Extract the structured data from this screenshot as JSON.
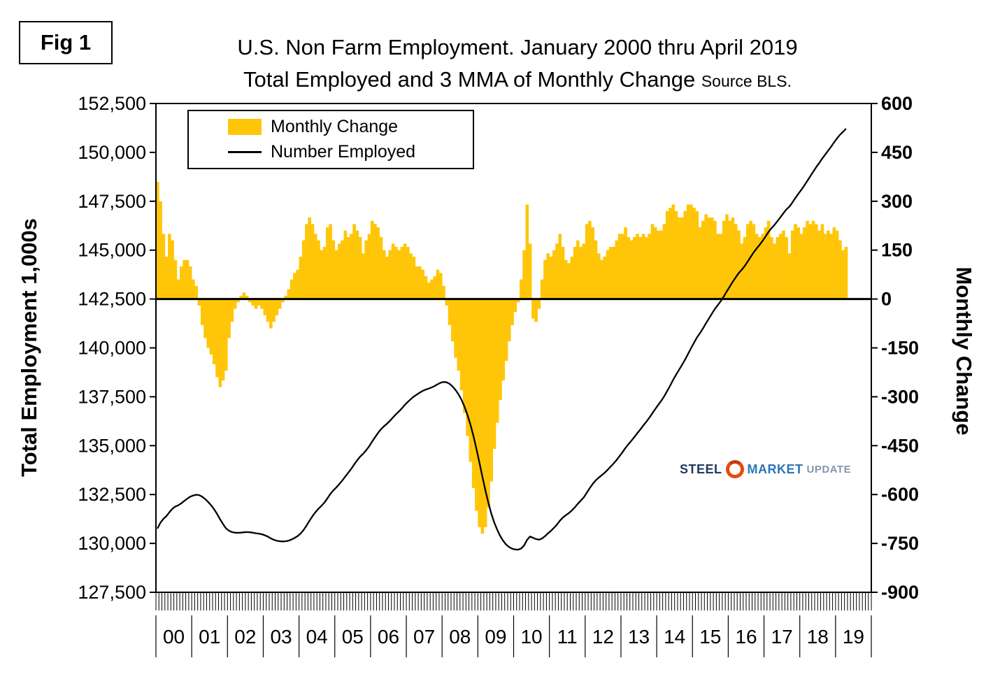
{
  "header": {
    "fig_label": "Fig 1"
  },
  "logo": {
    "steel": "STEEL",
    "market": "MARKET",
    "update": "UPDATE"
  },
  "chart_data": {
    "type": "combo-bar-line",
    "title": "U.S. Non Farm Employment. January 2000 thru April 2019",
    "subtitle": "Total Employed and 3 MMA of Monthly Change",
    "source": "Source BLS.",
    "legend_position": "top-left",
    "grid": "none",
    "left_axis": {
      "label": "Total Employment 1,000s",
      "min": 127500,
      "max": 152500,
      "step": 2500
    },
    "right_axis": {
      "label": "Monthly Change",
      "min": -900,
      "max": 600,
      "step": 150
    },
    "x_axis": {
      "year_labels": [
        "00",
        "01",
        "02",
        "03",
        "04",
        "05",
        "06",
        "07",
        "08",
        "09",
        "10",
        "11",
        "12",
        "13",
        "14",
        "15",
        "16",
        "17",
        "18",
        "19"
      ],
      "months_total": 240,
      "months_with_data": 232,
      "first_month": "Jan 2000",
      "last_month": "Apr 2019"
    },
    "series": [
      {
        "name": "Monthly Change",
        "type": "bar",
        "axis": "right",
        "color": "#FFC609",
        "values": [
          360,
          300,
          200,
          130,
          200,
          180,
          120,
          60,
          100,
          120,
          120,
          100,
          60,
          40,
          -20,
          -80,
          -120,
          -150,
          -170,
          -200,
          -240,
          -270,
          -250,
          -220,
          -120,
          -70,
          -30,
          -10,
          10,
          20,
          10,
          -10,
          -20,
          -30,
          -20,
          -30,
          -50,
          -70,
          -90,
          -70,
          -50,
          -30,
          -10,
          10,
          30,
          60,
          80,
          90,
          130,
          180,
          230,
          250,
          230,
          200,
          180,
          150,
          160,
          220,
          230,
          180,
          150,
          170,
          180,
          210,
          190,
          200,
          230,
          210,
          190,
          140,
          180,
          200,
          240,
          230,
          220,
          190,
          150,
          130,
          150,
          170,
          160,
          150,
          160,
          170,
          160,
          140,
          130,
          100,
          100,
          90,
          70,
          50,
          60,
          70,
          90,
          80,
          40,
          -20,
          -80,
          -130,
          -180,
          -220,
          -280,
          -350,
          -420,
          -500,
          -580,
          -650,
          -700,
          -720,
          -700,
          -640,
          -560,
          -460,
          -380,
          -310,
          -250,
          -190,
          -130,
          -80,
          -40,
          -10,
          60,
          150,
          290,
          170,
          -60,
          -70,
          -30,
          60,
          120,
          140,
          130,
          150,
          170,
          200,
          160,
          120,
          110,
          130,
          160,
          180,
          160,
          170,
          230,
          240,
          220,
          180,
          140,
          120,
          130,
          150,
          160,
          160,
          180,
          200,
          200,
          220,
          190,
          180,
          190,
          200,
          190,
          200,
          190,
          200,
          230,
          220,
          210,
          210,
          230,
          270,
          280,
          290,
          270,
          250,
          250,
          270,
          290,
          290,
          280,
          270,
          220,
          240,
          260,
          250,
          250,
          240,
          200,
          200,
          240,
          260,
          240,
          250,
          230,
          210,
          170,
          190,
          230,
          240,
          230,
          200,
          190,
          200,
          220,
          240,
          190,
          170,
          190,
          200,
          210,
          190,
          140,
          210,
          230,
          220,
          200,
          220,
          240,
          230,
          240,
          230,
          210,
          230,
          200,
          210,
          200,
          220,
          210,
          180,
          150,
          160
        ]
      },
      {
        "name": "Number Employed",
        "type": "line",
        "axis": "left",
        "color": "#000000",
        "values": [
          130760,
          131060,
          131260,
          131390,
          131590,
          131770,
          131890,
          131950,
          132050,
          132170,
          132290,
          132390,
          132450,
          132490,
          132470,
          132390,
          132270,
          132120,
          131950,
          131750,
          131510,
          131240,
          130990,
          130770,
          130650,
          130580,
          130550,
          130540,
          130550,
          130570,
          130580,
          130570,
          130550,
          130520,
          130500,
          130470,
          130420,
          130350,
          130260,
          130190,
          130140,
          130110,
          130100,
          130110,
          130140,
          130200,
          130280,
          130370,
          130500,
          130680,
          130910,
          131160,
          131390,
          131590,
          131770,
          131920,
          132080,
          132300,
          132530,
          132710,
          132860,
          133030,
          133210,
          133420,
          133610,
          133810,
          134040,
          134250,
          134440,
          134580,
          134760,
          134960,
          135200,
          135430,
          135650,
          135840,
          135990,
          136120,
          136270,
          136440,
          136600,
          136750,
          136910,
          137080,
          137240,
          137380,
          137510,
          137610,
          137710,
          137800,
          137870,
          137920,
          137980,
          138050,
          138140,
          138220,
          138260,
          138240,
          138160,
          138030,
          137850,
          137630,
          137350,
          137000,
          136580,
          136080,
          135500,
          134850,
          134150,
          133430,
          132730,
          132090,
          131530,
          131070,
          130690,
          130380,
          130130,
          129940,
          129810,
          129730,
          129690,
          129680,
          129740,
          129890,
          130180,
          130350,
          130290,
          130220,
          130190,
          130250,
          130370,
          130510,
          130640,
          130790,
          130960,
          131160,
          131320,
          131440,
          131550,
          131680,
          131840,
          132020,
          132180,
          132350,
          132580,
          132820,
          133040,
          133220,
          133360,
          133480,
          133610,
          133760,
          133920,
          134080,
          134260,
          134460,
          134660,
          134880,
          135070,
          135250,
          135440,
          135640,
          135830,
          136030,
          136220,
          136420,
          136650,
          136870,
          137080,
          137290,
          137520,
          137790,
          138070,
          138360,
          138630,
          138880,
          139130,
          139400,
          139690,
          139980,
          140260,
          140530,
          140750,
          140990,
          141250,
          141500,
          141750,
          141990,
          142190,
          142390,
          142630,
          142890,
          143130,
          143380,
          143610,
          143820,
          143990,
          144180,
          144410,
          144650,
          144880,
          145080,
          145270,
          145470,
          145690,
          145930,
          146120,
          146290,
          146480,
          146680,
          146890,
          147080,
          147220,
          147430,
          147660,
          147880,
          148080,
          148300,
          148540,
          148770,
          149010,
          149240,
          149450,
          149680,
          149880,
          150090,
          150290,
          150510,
          150720,
          150900,
          151050,
          151210
        ]
      }
    ]
  }
}
